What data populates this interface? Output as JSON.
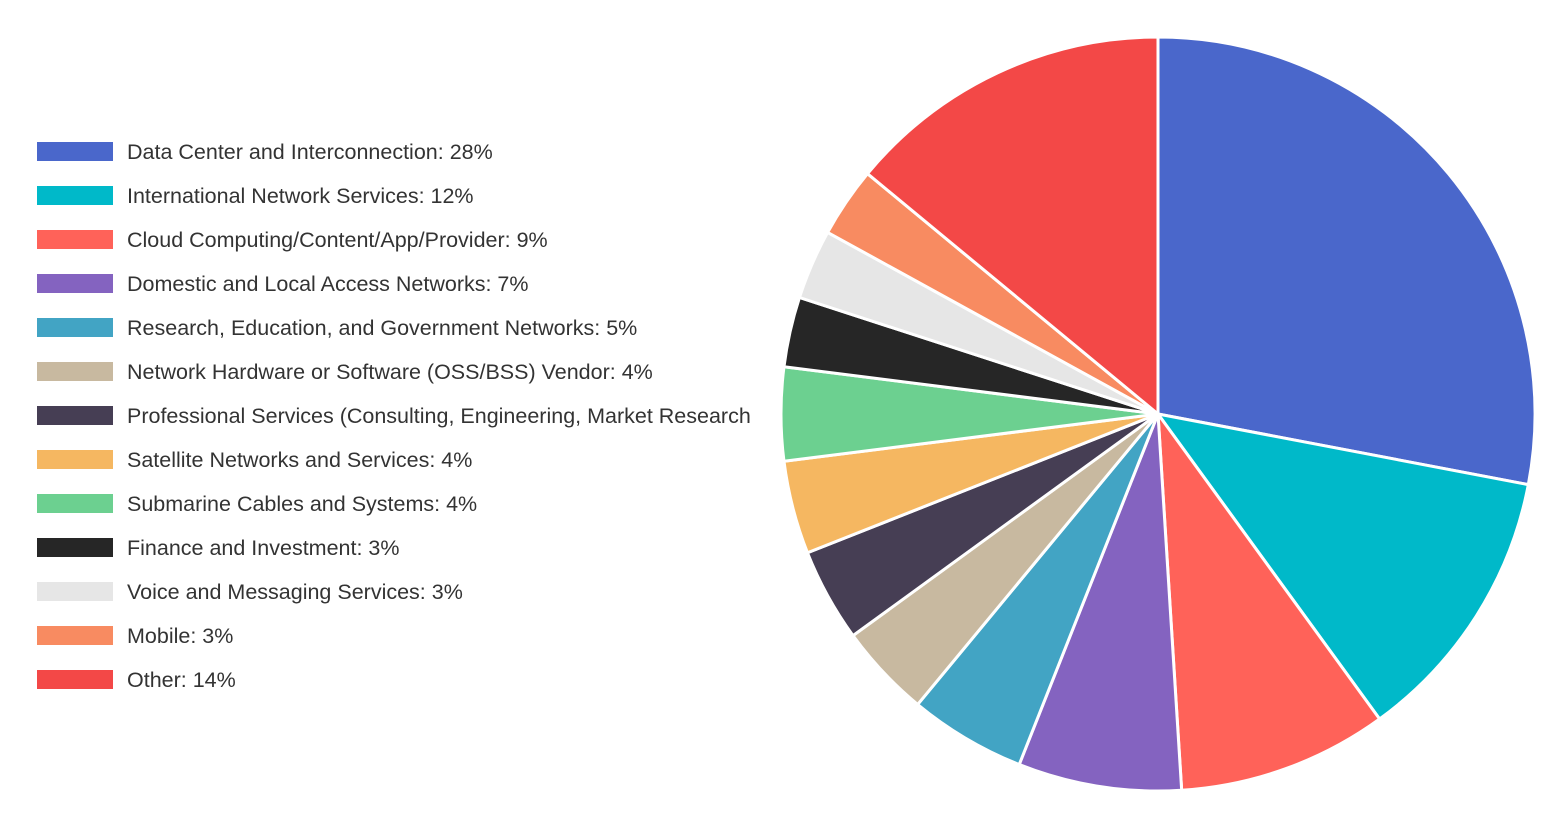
{
  "chart_data": {
    "type": "pie",
    "legend_position": "left",
    "start_angle": "12 o'clock",
    "direction": "clockwise",
    "slices": [
      {
        "label": "Data Center and Interconnection: 28%",
        "value": 28,
        "color": "#4A67CB"
      },
      {
        "label": "International Network Services: 12%",
        "value": 12,
        "color": "#00B9C9"
      },
      {
        "label": "Cloud Computing/Content/App/Provider: 9%",
        "value": 9,
        "color": "#FF6259"
      },
      {
        "label": "Domestic and Local Access Networks: 7%",
        "value": 7,
        "color": "#8463C0"
      },
      {
        "label": "Research, Education, and Government Networks: 5%",
        "value": 5,
        "color": "#42A4C4"
      },
      {
        "label": "Network Hardware or Software (OSS/BSS) Vendor: 4%",
        "value": 4,
        "color": "#C8B9A0"
      },
      {
        "label": "Professional Services (Consulting, Engineering, Market Research",
        "value": 4,
        "color": "#463E54"
      },
      {
        "label": "Satellite Networks and Services: 4%",
        "value": 4,
        "color": "#F5B761"
      },
      {
        "label": "Submarine Cables and Systems: 4%",
        "value": 4,
        "color": "#6CD090"
      },
      {
        "label": "Finance and Investment: 3%",
        "value": 3,
        "color": "#262626"
      },
      {
        "label": "Voice and Messaging Services: 3%",
        "value": 3,
        "color": "#E6E6E6"
      },
      {
        "label": "Mobile: 3%",
        "value": 3,
        "color": "#F88B61"
      },
      {
        "label": "Other: 14%",
        "value": 14,
        "color": "#F34847"
      }
    ]
  }
}
